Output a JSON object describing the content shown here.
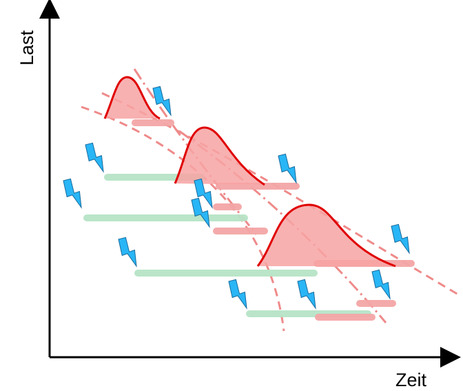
{
  "axes": {
    "x_label": "Zeit",
    "y_label": "Last"
  },
  "colors": {
    "axis": "#000000",
    "bell_fill": "#f7a3a3",
    "bell_line": "#e00000",
    "green_bar": "#b7e4c7",
    "red_bar": "#f4a6a6",
    "bolt": "#29b6f6",
    "dashed_curves": "#ef8a8a"
  },
  "icons": [
    "lightning-bolt-icon"
  ]
}
